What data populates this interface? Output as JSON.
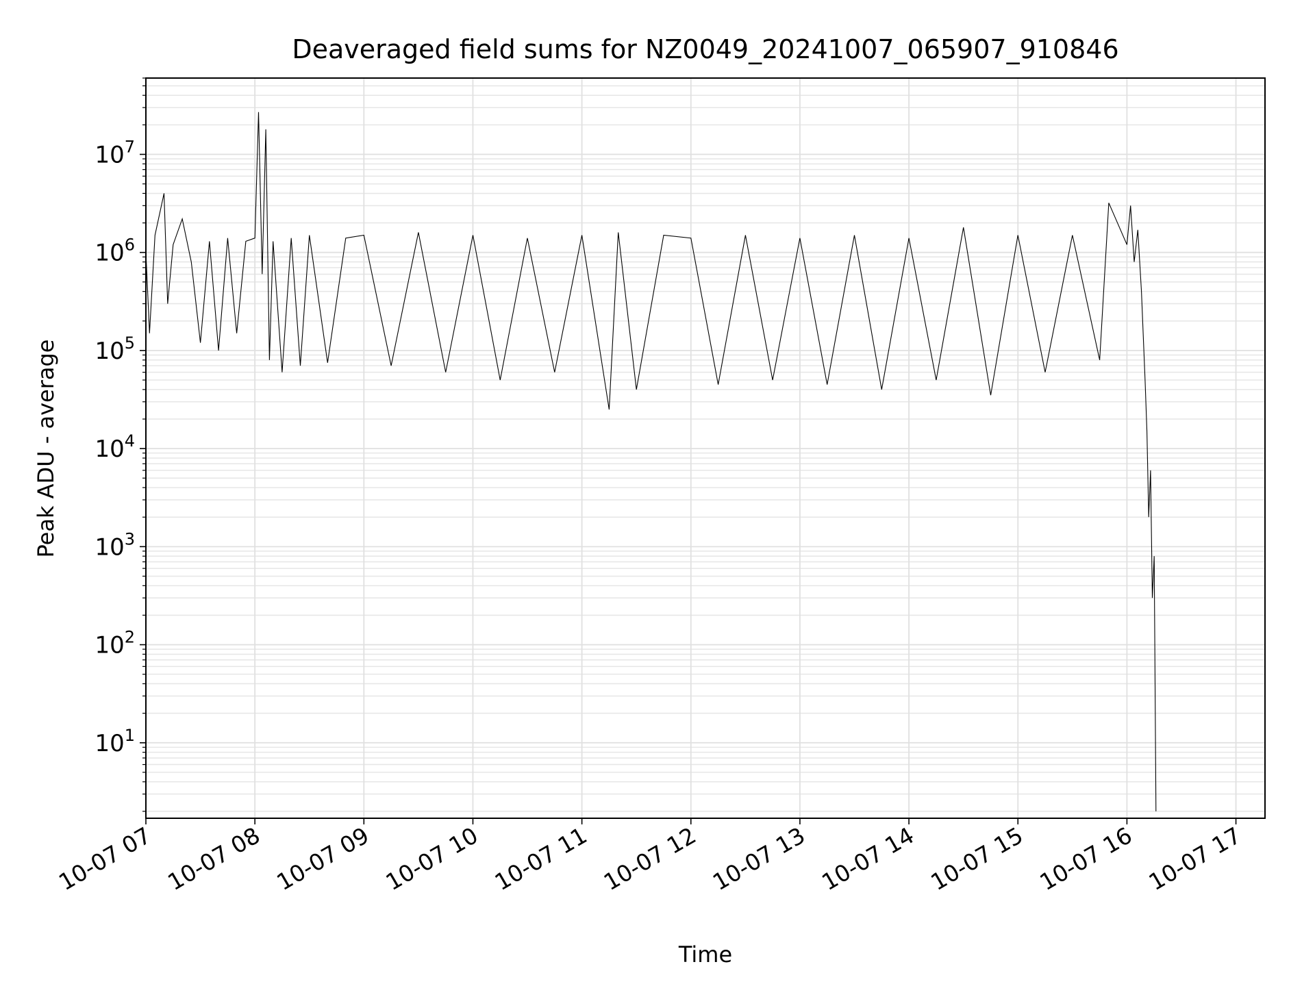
{
  "chart_data": {
    "type": "line",
    "title": "Deaveraged field sums for NZ0049_20241007_065907_910846",
    "xlabel": "Time",
    "ylabel": "Peak ADU - average",
    "yscale": "log",
    "ylim": [
      1.7,
      60000000
    ],
    "xlim": [
      "2024-10-07 07:00",
      "2024-10-07 17:16"
    ],
    "grid": true,
    "x_tick_labels": [
      "10-07 07",
      "10-07 08",
      "10-07 09",
      "10-07 10",
      "10-07 11",
      "10-07 12",
      "10-07 13",
      "10-07 14",
      "10-07 15",
      "10-07 16",
      "10-07 17"
    ],
    "y_tick_labels": [
      {
        "base": "10",
        "exp": "1"
      },
      {
        "base": "10",
        "exp": "2"
      },
      {
        "base": "10",
        "exp": "3"
      },
      {
        "base": "10",
        "exp": "4"
      },
      {
        "base": "10",
        "exp": "5"
      },
      {
        "base": "10",
        "exp": "6"
      },
      {
        "base": "10",
        "exp": "7"
      }
    ],
    "line_color": "#000000",
    "series": [
      {
        "x": [
          "2024-10-07 07:00",
          "2024-10-07 07:02",
          "2024-10-07 07:05",
          "2024-10-07 07:10",
          "2024-10-07 07:12",
          "2024-10-07 07:15",
          "2024-10-07 07:20",
          "2024-10-07 07:25",
          "2024-10-07 07:30",
          "2024-10-07 07:35",
          "2024-10-07 07:40",
          "2024-10-07 07:45",
          "2024-10-07 07:50",
          "2024-10-07 07:55",
          "2024-10-07 08:00",
          "2024-10-07 08:02",
          "2024-10-07 08:04",
          "2024-10-07 08:06",
          "2024-10-07 08:08",
          "2024-10-07 08:10",
          "2024-10-07 08:15",
          "2024-10-07 08:20",
          "2024-10-07 08:25",
          "2024-10-07 08:30",
          "2024-10-07 08:40",
          "2024-10-07 08:50",
          "2024-10-07 09:00",
          "2024-10-07 09:15",
          "2024-10-07 09:30",
          "2024-10-07 09:45",
          "2024-10-07 10:00",
          "2024-10-07 10:15",
          "2024-10-07 10:30",
          "2024-10-07 10:45",
          "2024-10-07 11:00",
          "2024-10-07 11:15",
          "2024-10-07 11:20",
          "2024-10-07 11:30",
          "2024-10-07 11:45",
          "2024-10-07 12:00",
          "2024-10-07 12:15",
          "2024-10-07 12:30",
          "2024-10-07 12:45",
          "2024-10-07 13:00",
          "2024-10-07 13:15",
          "2024-10-07 13:30",
          "2024-10-07 13:45",
          "2024-10-07 14:00",
          "2024-10-07 14:15",
          "2024-10-07 14:30",
          "2024-10-07 14:45",
          "2024-10-07 15:00",
          "2024-10-07 15:15",
          "2024-10-07 15:30",
          "2024-10-07 15:45",
          "2024-10-07 15:50",
          "2024-10-07 16:00",
          "2024-10-07 16:02",
          "2024-10-07 16:04",
          "2024-10-07 16:06",
          "2024-10-07 16:08",
          "2024-10-07 16:10",
          "2024-10-07 16:11",
          "2024-10-07 16:12",
          "2024-10-07 16:13",
          "2024-10-07 16:14",
          "2024-10-07 16:15",
          "2024-10-07 16:16"
        ],
        "y": [
          1000000,
          150000,
          1500000,
          4000000,
          300000,
          1200000,
          2200000,
          800000,
          120000,
          1300000,
          100000,
          1400000,
          150000,
          1300000,
          1400000,
          27000000,
          600000,
          18000000,
          80000,
          1300000,
          60000,
          1400000,
          70000,
          1500000,
          75000,
          1400000,
          1500000,
          70000,
          1600000,
          60000,
          1500000,
          50000,
          1400000,
          60000,
          1500000,
          25000,
          1600000,
          40000,
          1500000,
          1400000,
          45000,
          1500000,
          50000,
          1400000,
          45000,
          1500000,
          40000,
          1400000,
          50000,
          1800000,
          35000,
          1500000,
          60000,
          1500000,
          80000,
          3200000,
          1200000,
          3000000,
          800000,
          1700000,
          400000,
          50000,
          15000,
          2000,
          6000,
          300,
          800,
          2
        ]
      }
    ]
  }
}
